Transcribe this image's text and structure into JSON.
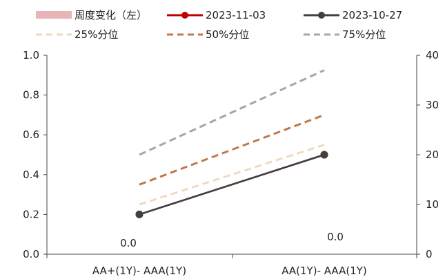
{
  "chart_data": {
    "type": "line",
    "categories": [
      "AA+(1Y)- AAA(1Y)",
      "AA(1Y)- AAA(1Y)"
    ],
    "legend": [
      {
        "label": "周度变化（左）",
        "kind": "bar",
        "color": "#e8b4b8"
      },
      {
        "label": "2023-11-03",
        "kind": "line-marker",
        "color": "#c00000"
      },
      {
        "label": "2023-10-27",
        "kind": "line-marker",
        "color": "#404040"
      },
      {
        "label": "25%分位",
        "kind": "dashed",
        "color": "#f1d9bf"
      },
      {
        "label": "50%分位",
        "kind": "dashed",
        "color": "#c0784a"
      },
      {
        "label": "75%分位",
        "kind": "dashed",
        "color": "#a6a6a6"
      }
    ],
    "bars": {
      "name": "周度变化（左）",
      "axis": "left",
      "values": [
        0.0,
        0.0
      ],
      "data_labels": [
        "0.0",
        "0.0"
      ]
    },
    "series": [
      {
        "name": "25%分位",
        "axis": "right",
        "style": "dashed",
        "color": "#f1d9bf",
        "values": [
          10,
          22
        ]
      },
      {
        "name": "50%分位",
        "axis": "right",
        "style": "dashed",
        "color": "#c0784a",
        "values": [
          14,
          28
        ]
      },
      {
        "name": "75%分位",
        "axis": "right",
        "style": "dashed",
        "color": "#a6a6a6",
        "values": [
          20,
          37
        ]
      },
      {
        "name": "2023-11-03",
        "axis": "right",
        "style": "solid-marker",
        "color": "#c00000",
        "values": [
          8,
          20
        ]
      },
      {
        "name": "2023-10-27",
        "axis": "right",
        "style": "solid-marker",
        "color": "#404040",
        "values": [
          8,
          20
        ]
      }
    ],
    "left_axis": {
      "ylim": [
        0,
        1.0
      ],
      "ticks": [
        "0.0",
        "0.2",
        "0.4",
        "0.6",
        "0.8",
        "1.0"
      ]
    },
    "right_axis": {
      "ylim": [
        0,
        40
      ],
      "ticks": [
        "0",
        "10",
        "20",
        "30",
        "40"
      ]
    },
    "grid": false,
    "legend_position": "top"
  }
}
